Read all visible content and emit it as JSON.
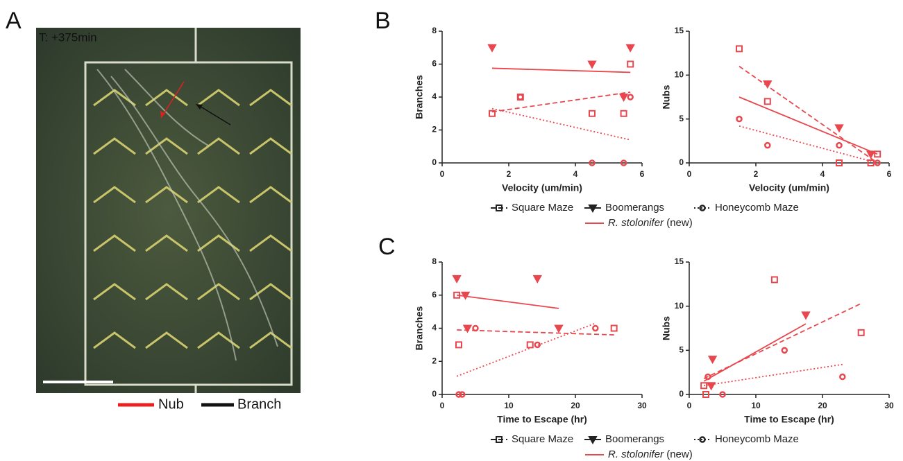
{
  "figure": {
    "panel_labels": [
      "A",
      "B",
      "C"
    ],
    "image": {
      "timestamp": "T: +375min",
      "legend": [
        "Nub",
        "Branch"
      ]
    }
  },
  "chart_data": [
    {
      "type": "scatter",
      "xlabel": "Velocity  (um/min)",
      "ylabel": "Branches",
      "xlim": [
        0,
        6
      ],
      "ylim": [
        0,
        8
      ],
      "xticks": [
        0,
        2,
        4,
        6
      ],
      "yticks": [
        0,
        2,
        4,
        6,
        8
      ],
      "legend_note": {
        "species": "R. stolonifer",
        "suffix": "(new)"
      },
      "series": [
        {
          "name": "Square Maze",
          "color": "#e8474e",
          "marker": "square",
          "line_style": "dashed",
          "x": [
            1.5,
            2.35,
            4.5,
            5.45,
            5.65
          ],
          "values": [
            3,
            4,
            3,
            3,
            6
          ],
          "fit": {
            "x": [
              1.5,
              5.65
            ],
            "y": [
              3.1,
              4.3
            ]
          }
        },
        {
          "name": "Boomerangs",
          "color": "#e8474e",
          "marker": "triangle",
          "line_style": "solid",
          "x": [
            1.5,
            4.5,
            5.65,
            5.45
          ],
          "values": [
            7,
            6,
            7,
            4
          ],
          "fit": {
            "x": [
              1.5,
              5.65
            ],
            "y": [
              5.75,
              5.5
            ]
          }
        },
        {
          "name": "Honeycomb Maze",
          "color": "#e8474e",
          "marker": "circle",
          "line_style": "dotted",
          "x": [
            2.35,
            4.5,
            5.45,
            5.65
          ],
          "values": [
            4,
            0,
            0,
            4
          ],
          "fit": {
            "x": [
              1.5,
              5.65
            ],
            "y": [
              3.3,
              1.4
            ]
          }
        }
      ]
    },
    {
      "type": "scatter",
      "xlabel": "Velocity  (um/min)",
      "ylabel": "Nubs",
      "xlim": [
        0,
        6
      ],
      "ylim": [
        0,
        15
      ],
      "xticks": [
        0,
        2,
        4,
        6
      ],
      "yticks": [
        0,
        5,
        10,
        15
      ],
      "series": [
        {
          "name": "Square Maze",
          "color": "#e8474e",
          "marker": "square",
          "line_style": "dashed",
          "x": [
            1.5,
            2.35,
            4.5,
            5.45,
            5.65
          ],
          "values": [
            13,
            7,
            0,
            0,
            1
          ],
          "fit": {
            "x": [
              1.5,
              5.65
            ],
            "y": [
              11,
              0
            ]
          }
        },
        {
          "name": "Boomerangs",
          "color": "#e8474e",
          "marker": "triangle",
          "line_style": "solid",
          "x": [
            2.35,
            4.5,
            5.45
          ],
          "values": [
            9,
            4,
            1
          ],
          "fit": {
            "x": [
              1.5,
              5.65
            ],
            "y": [
              7.5,
              1
            ]
          }
        },
        {
          "name": "Honeycomb Maze",
          "color": "#e8474e",
          "marker": "circle",
          "line_style": "dotted",
          "x": [
            1.5,
            2.35,
            4.5,
            5.65
          ],
          "values": [
            5,
            2,
            2,
            0
          ],
          "fit": {
            "x": [
              1.5,
              5.65
            ],
            "y": [
              4.2,
              0
            ]
          }
        }
      ]
    },
    {
      "type": "scatter",
      "xlabel": "Time to  Escape (hr)",
      "ylabel": "Branches",
      "xlim": [
        0,
        30
      ],
      "ylim": [
        0,
        8
      ],
      "xticks": [
        0,
        10,
        20,
        30
      ],
      "yticks": [
        0,
        2,
        4,
        6,
        8
      ],
      "legend_note": {
        "species": "R. stolonifer",
        "suffix": "(new)"
      },
      "series": [
        {
          "name": "Square Maze",
          "color": "#e8474e",
          "marker": "square",
          "line_style": "dashed",
          "x": [
            2.2,
            2.5,
            13.2,
            25.8
          ],
          "values": [
            6,
            3,
            3,
            4
          ],
          "fit": {
            "x": [
              2.2,
              25.8
            ],
            "y": [
              3.9,
              3.6
            ]
          }
        },
        {
          "name": "Boomerangs",
          "color": "#e8474e",
          "marker": "triangle",
          "line_style": "solid",
          "x": [
            2.2,
            3.5,
            3.8,
            14.3,
            17.5
          ],
          "values": [
            7,
            6,
            4,
            7,
            4
          ],
          "fit": {
            "x": [
              2.2,
              17.5
            ],
            "y": [
              6,
              5.2
            ]
          }
        },
        {
          "name": "Honeycomb Maze",
          "color": "#e8474e",
          "marker": "circle",
          "line_style": "dotted",
          "x": [
            2.5,
            3,
            5,
            14.3,
            23
          ],
          "values": [
            0,
            0,
            4,
            3,
            4
          ],
          "fit": {
            "x": [
              2.2,
              23
            ],
            "y": [
              1.1,
              4.3
            ]
          }
        }
      ]
    },
    {
      "type": "scatter",
      "xlabel": "Time to  Escape (hr)",
      "ylabel": "Nubs",
      "xlim": [
        0,
        30
      ],
      "ylim": [
        0,
        15
      ],
      "xticks": [
        0,
        10,
        20,
        30
      ],
      "yticks": [
        0,
        5,
        10,
        15
      ],
      "series": [
        {
          "name": "Square Maze",
          "color": "#e8474e",
          "marker": "square",
          "line_style": "dashed",
          "x": [
            2.2,
            2.5,
            12.8,
            25.8
          ],
          "values": [
            1,
            0,
            13,
            7
          ],
          "fit": {
            "x": [
              2.2,
              25.8
            ],
            "y": [
              1.8,
              10.3
            ]
          }
        },
        {
          "name": "Boomerangs",
          "color": "#e8474e",
          "marker": "triangle",
          "line_style": "solid",
          "x": [
            3.5,
            3.3,
            17.5
          ],
          "values": [
            4,
            1,
            9
          ],
          "fit": {
            "x": [
              2.2,
              17.5
            ],
            "y": [
              1.5,
              8
            ]
          }
        },
        {
          "name": "Honeycomb Maze",
          "color": "#e8474e",
          "marker": "circle",
          "line_style": "dotted",
          "x": [
            2.8,
            5,
            14.3,
            23
          ],
          "values": [
            2,
            0,
            5,
            2
          ],
          "fit": {
            "x": [
              2.2,
              23
            ],
            "y": [
              1,
              3.4
            ]
          }
        }
      ]
    }
  ]
}
